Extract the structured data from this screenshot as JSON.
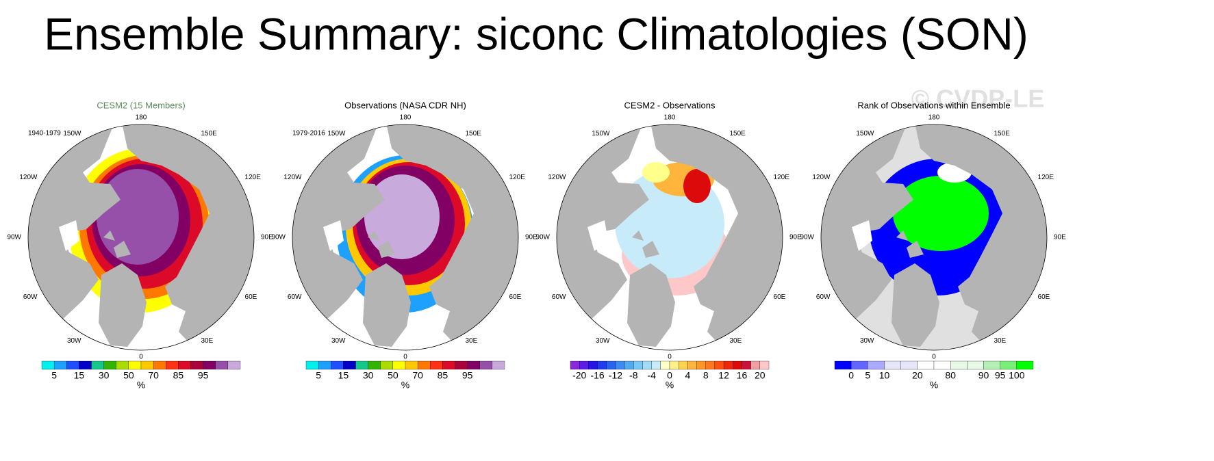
{
  "title": "Ensemble Summary: siconc Climatologies (SON)",
  "watermark": "© CVDP-LE",
  "lon_labels": [
    "180",
    "150E",
    "120E",
    "90E",
    "60E",
    "30E",
    "0",
    "30W",
    "60W",
    "90W",
    "120W",
    "150W"
  ],
  "panels": [
    {
      "title": "CESM2 (15 Members)",
      "period": "1940-1979",
      "colorbar": {
        "colors": [
          "#00f0f0",
          "#1ea0ff",
          "#1e50ff",
          "#0000c8",
          "#14c88c",
          "#32b400",
          "#aadc00",
          "#ffff00",
          "#ffc800",
          "#ff7800",
          "#ff3214",
          "#dc0a28",
          "#aa003c",
          "#820064",
          "#9650aa",
          "#c8aadc"
        ],
        "ticks": [
          5,
          15,
          30,
          50,
          70,
          85,
          95
        ],
        "unit": "%"
      }
    },
    {
      "title": "Observations (NASA CDR NH)",
      "period": "1979-2016",
      "colorbar": {
        "colors": [
          "#00f0f0",
          "#1ea0ff",
          "#1e50ff",
          "#0000c8",
          "#14c88c",
          "#32b400",
          "#aadc00",
          "#ffff00",
          "#ffc800",
          "#ff7800",
          "#ff3214",
          "#dc0a28",
          "#aa003c",
          "#820064",
          "#9650aa",
          "#c8aadc"
        ],
        "ticks": [
          5,
          15,
          30,
          50,
          70,
          85,
          95
        ],
        "unit": "%"
      }
    },
    {
      "title": "CESM2 - Observations",
      "colorbar": {
        "colors": [
          "#8c28dc",
          "#5a1ee6",
          "#2814e6",
          "#1e3cf0",
          "#2864f0",
          "#3c8cf0",
          "#50aaf0",
          "#78c8f5",
          "#a0dcf5",
          "#c8ebfa",
          "#ffffc8",
          "#fff08c",
          "#ffd250",
          "#ffb43c",
          "#ff9628",
          "#ff781e",
          "#ff5014",
          "#f0280a",
          "#dc0a0a",
          "#c8143c",
          "#f0a0a0",
          "#ffc8c8"
        ],
        "ticks": [
          -20,
          -16,
          -12,
          -8,
          -4,
          0,
          4,
          8,
          12,
          16,
          20
        ],
        "unit": "%"
      }
    },
    {
      "title": "Rank of Observations within Ensemble",
      "colorbar": {
        "colors": [
          "#0000ff",
          "#6464ff",
          "#aaaaff",
          "#e6e6fa",
          "#e6e6fa",
          "#ffffff",
          "#ffffff",
          "#e6fae6",
          "#e6fae6",
          "#b4f0b4",
          "#78f078",
          "#00ff00"
        ],
        "ticks": [
          0,
          5,
          10,
          20,
          80,
          90,
          95,
          100
        ],
        "unit": "%"
      }
    }
  ]
}
